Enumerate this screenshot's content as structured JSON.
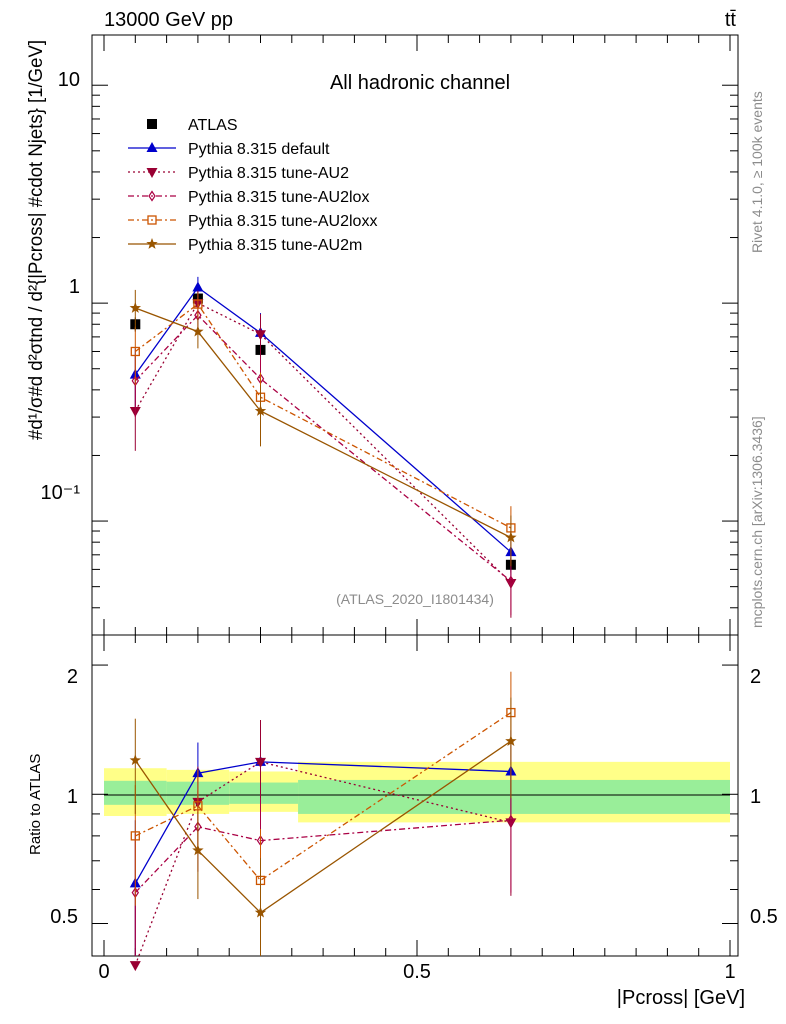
{
  "header": {
    "energy_label": "13000 GeV pp",
    "process_label": "tt̄"
  },
  "side_text": {
    "rivet": "Rivet 4.1.0, ≥ 100k events",
    "mcplots": "mcplots.cern.ch [arXiv:1306.3436]"
  },
  "watermark": "(ATLAS_2020_I1801434)",
  "main_plot": {
    "title": "All hadronic channel",
    "ylabel": "#d¹/σ#d d²σtnd / d²{|Pcross| #cdot Njets} [1/GeV]",
    "ytick_labels": [
      "10",
      "1",
      "10⁻¹"
    ]
  },
  "ratio_plot": {
    "ylabel": "Ratio to ATLAS",
    "ytick_labels": [
      "2",
      "1",
      "0.5"
    ]
  },
  "xaxis": {
    "label": "|Pcross| [GeV]",
    "tick_labels": [
      "0",
      "0.5",
      "1"
    ]
  },
  "legend": [
    {
      "label": "ATLAS"
    },
    {
      "label": "Pythia 8.315 default"
    },
    {
      "label": "Pythia 8.315 tune-AU2"
    },
    {
      "label": "Pythia 8.315 tune-AU2lox"
    },
    {
      "label": "Pythia 8.315 tune-AU2loxx"
    },
    {
      "label": "Pythia 8.315 tune-AU2m"
    }
  ],
  "chart_data": {
    "type": "scatter",
    "title": "All hadronic channel",
    "xlabel": "|Pcross| [GeV]",
    "xlim": [
      0,
      1
    ],
    "main": {
      "yscale": "log",
      "ylim": [
        0.03,
        17
      ],
      "series": [
        {
          "name": "ATLAS",
          "color": "#000000",
          "marker": "square",
          "line": "none",
          "x": [
            0.05,
            0.15,
            0.25,
            0.65
          ],
          "y": [
            0.8,
            1.05,
            0.61,
            0.063
          ],
          "yerr": [
            0.06,
            0.08,
            0.05,
            0.005
          ]
        },
        {
          "name": "Pythia 8.315 default",
          "color": "#0000cc",
          "marker": "triangle-up",
          "line": "solid",
          "x": [
            0.05,
            0.15,
            0.25,
            0.65
          ],
          "y": [
            0.47,
            1.18,
            0.73,
            0.072
          ],
          "yerr": [
            0.15,
            0.14,
            0.17,
            0.018
          ]
        },
        {
          "name": "Pythia 8.315 tune-AU2",
          "color": "#990033",
          "marker": "triangle-down",
          "line": "dotted",
          "x": [
            0.05,
            0.15,
            0.25,
            0.65
          ],
          "y": [
            0.32,
            1.0,
            0.72,
            0.052
          ],
          "yerr": [
            0.11,
            0.14,
            0.17,
            0.016
          ]
        },
        {
          "name": "Pythia 8.315 tune-AU2lox",
          "color": "#aa0044",
          "marker": "diamond-open",
          "line": "dashdot",
          "x": [
            0.05,
            0.15,
            0.25,
            0.65
          ],
          "y": [
            0.44,
            0.88,
            0.45,
            0.053
          ],
          "yerr": [
            0.14,
            0.13,
            0.12,
            0.016
          ]
        },
        {
          "name": "Pythia 8.315 tune-AU2loxx",
          "color": "#cc5500",
          "marker": "square-open",
          "line": "dashdot",
          "x": [
            0.05,
            0.15,
            0.25,
            0.65
          ],
          "y": [
            0.6,
            0.99,
            0.37,
            0.093
          ],
          "yerr": [
            0.18,
            0.13,
            0.11,
            0.024
          ]
        },
        {
          "name": "Pythia 8.315 tune-AU2m",
          "color": "#995500",
          "marker": "star",
          "line": "solid",
          "x": [
            0.05,
            0.15,
            0.25,
            0.65
          ],
          "y": [
            0.95,
            0.74,
            0.32,
            0.084
          ],
          "yerr": [
            0.2,
            0.12,
            0.1,
            0.022
          ]
        }
      ]
    },
    "ratio": {
      "yscale": "log",
      "ylim": [
        0.42,
        2.35
      ],
      "ylabel": "Ratio to ATLAS",
      "bands": {
        "x_edges": [
          0.0,
          0.1,
          0.2,
          0.31,
          1.0
        ],
        "inner": [
          [
            0.945,
            1.075
          ],
          [
            0.945,
            1.07
          ],
          [
            0.95,
            1.065
          ],
          [
            0.9,
            1.08
          ]
        ],
        "outer": [
          [
            0.89,
            1.15
          ],
          [
            0.9,
            1.14
          ],
          [
            0.91,
            1.13
          ],
          [
            0.86,
            1.19
          ]
        ]
      },
      "series": [
        {
          "name": "Pythia 8.315 default",
          "y": [
            0.62,
            1.12,
            1.19,
            1.13
          ],
          "yerr": [
            0.25,
            0.2,
            0.3,
            0.28
          ]
        },
        {
          "name": "Pythia 8.315 tune-AU2",
          "y": [
            0.4,
            0.96,
            1.19,
            0.86
          ],
          "yerr": [
            0.15,
            0.2,
            0.3,
            0.28
          ]
        },
        {
          "name": "Pythia 8.315 tune-AU2lox",
          "y": [
            0.59,
            0.84,
            0.78,
            0.87
          ],
          "yerr": [
            0.22,
            0.18,
            0.2,
            0.28
          ]
        },
        {
          "name": "Pythia 8.315 tune-AU2loxx",
          "y": [
            0.8,
            0.94,
            0.63,
            1.55
          ],
          "yerr": [
            0.25,
            0.2,
            0.2,
            0.38
          ]
        },
        {
          "name": "Pythia 8.315 tune-AU2m",
          "y": [
            1.2,
            0.74,
            0.53,
            1.33
          ],
          "yerr": [
            0.3,
            0.17,
            0.18,
            0.35
          ]
        }
      ]
    }
  }
}
